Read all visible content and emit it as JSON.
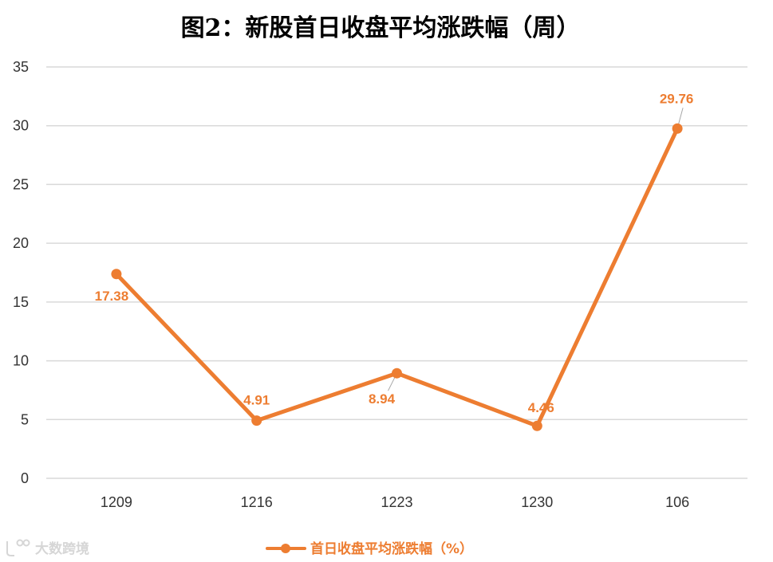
{
  "chart_data": {
    "type": "line",
    "title": "图2：新股首日收盘平均涨跌幅（周）",
    "categories": [
      "1209",
      "1216",
      "1223",
      "1230",
      "106"
    ],
    "series": [
      {
        "name": "首日收盘平均涨跌幅（%）",
        "values": [
          17.38,
          4.91,
          8.94,
          4.46,
          29.76
        ],
        "color": "#ED7D31",
        "data_labels": [
          "17.38",
          "4.91",
          "8.94",
          "4.46",
          "29.76"
        ]
      }
    ],
    "ylim": [
      0,
      35
    ],
    "yticks": [
      0,
      5,
      10,
      15,
      20,
      25,
      30,
      35
    ],
    "ytick_labels": [
      "0",
      "5",
      "10",
      "15",
      "20",
      "25",
      "30",
      "35"
    ],
    "xlabel": "",
    "ylabel": "",
    "grid": true,
    "legend_position": "bottom",
    "label_color": "#ED7D31",
    "gridline_color": "#D9D9D9",
    "leader_line_color": "#A6A6A6"
  },
  "watermark": {
    "text": "大数跨境"
  }
}
